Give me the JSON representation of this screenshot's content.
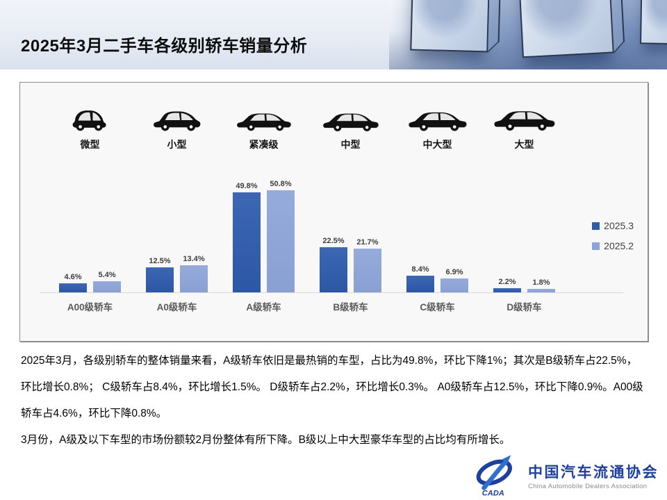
{
  "header": {
    "title": "2025年3月二手车各级别轿车销量分析"
  },
  "car_types": [
    {
      "label": "微型",
      "icon": "micro-car-icon"
    },
    {
      "label": "小型",
      "icon": "small-car-icon"
    },
    {
      "label": "紧凑级",
      "icon": "compact-car-icon"
    },
    {
      "label": "中型",
      "icon": "midsize-car-icon"
    },
    {
      "label": "中大型",
      "icon": "mid-large-car-icon"
    },
    {
      "label": "大型",
      "icon": "large-car-icon"
    }
  ],
  "chart_data": {
    "type": "bar",
    "categories": [
      "A00级轿车",
      "A0级轿车",
      "A级轿车",
      "B级轿车",
      "C级轿车",
      "D级轿车"
    ],
    "series": [
      {
        "name": "2025.3",
        "color": "#2E5CA8",
        "values": [
          4.6,
          12.5,
          49.8,
          22.5,
          8.4,
          2.2
        ]
      },
      {
        "name": "2025.2",
        "color": "#8EA4D6",
        "values": [
          5.4,
          13.4,
          50.8,
          21.7,
          6.9,
          1.8
        ]
      }
    ],
    "value_suffix": "%",
    "title": "",
    "xlabel": "",
    "ylabel": "",
    "ylim": [
      0,
      55
    ],
    "grid": false,
    "legend_position": "right"
  },
  "analysis": {
    "paragraph1": "2025年3月，各级别轿车的整体销量来看，A级轿车依旧是最热销的车型，占比为49.8%，环比下降1%；其次是B级轿车占22.5%，环比增长0.8%； C级轿车占8.4%，环比增长1.5%。 D级轿车占2.2%，环比增长0.3%。 A0级轿车占12.5%，环比下降0.9%。A00级轿车占4.6%，环比下降0.8%。",
    "paragraph2": "3月份，A级及以下车型的市场份额较2月份整体有所下降。B级以上中大型豪华车型的占比均有所增长。"
  },
  "footer": {
    "org_name_cn": "中国汽车流通协会",
    "org_name_en": "China Automobile Dealers Association",
    "logo_text": "CADA",
    "brand_color": "#1D3F9D"
  }
}
